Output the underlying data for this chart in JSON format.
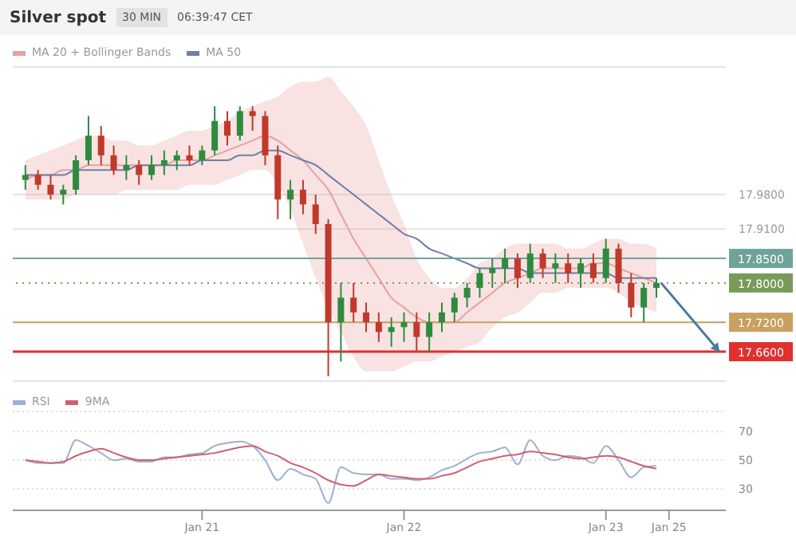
{
  "chart_data": [
    {
      "type": "candlestick",
      "title": "Silver spot",
      "subtitle": "30 MIN",
      "annotations": [
        "06:39:47 CET"
      ],
      "legend": "top left",
      "grid": "y",
      "tick_labels": "y",
      "categories": [
        null,
        null,
        null,
        null,
        null,
        null,
        null,
        null,
        null,
        null,
        null,
        null,
        null,
        null,
        null,
        null,
        null,
        null,
        null,
        null,
        null,
        null,
        null,
        null,
        null,
        null,
        null,
        null,
        null,
        null,
        null,
        null,
        null,
        null,
        null,
        null,
        null,
        null,
        null,
        null,
        null,
        null,
        null,
        null,
        null,
        null,
        null,
        null,
        null,
        null,
        null,
        null,
        null,
        null,
        null,
        null
      ],
      "ohlc": [
        [
          18.01,
          18.04,
          17.99,
          18.02
        ],
        [
          18.02,
          18.03,
          17.99,
          18.0
        ],
        [
          18.0,
          18.02,
          17.97,
          17.98
        ],
        [
          17.98,
          18.0,
          17.96,
          17.99
        ],
        [
          17.99,
          18.06,
          17.98,
          18.05
        ],
        [
          18.05,
          18.14,
          18.04,
          18.1
        ],
        [
          18.1,
          18.12,
          18.04,
          18.06
        ],
        [
          18.06,
          18.08,
          18.02,
          18.03
        ],
        [
          18.03,
          18.06,
          18.01,
          18.04
        ],
        [
          18.04,
          18.05,
          18.0,
          18.02
        ],
        [
          18.02,
          18.06,
          18.01,
          18.04
        ],
        [
          18.04,
          18.07,
          18.02,
          18.05
        ],
        [
          18.05,
          18.07,
          18.03,
          18.06
        ],
        [
          18.06,
          18.08,
          18.04,
          18.05
        ],
        [
          18.05,
          18.08,
          18.04,
          18.07
        ],
        [
          18.07,
          18.16,
          18.06,
          18.13
        ],
        [
          18.13,
          18.15,
          18.08,
          18.1
        ],
        [
          18.1,
          18.16,
          18.09,
          18.15
        ],
        [
          18.15,
          18.16,
          18.11,
          18.14
        ],
        [
          18.14,
          18.15,
          18.04,
          18.06
        ],
        [
          18.06,
          18.08,
          17.93,
          17.97
        ],
        [
          17.97,
          18.01,
          17.93,
          17.99
        ],
        [
          17.99,
          18.01,
          17.94,
          17.96
        ],
        [
          17.96,
          17.98,
          17.9,
          17.92
        ],
        [
          17.92,
          17.93,
          17.61,
          17.72
        ],
        [
          17.72,
          17.8,
          17.64,
          17.77
        ],
        [
          17.77,
          17.8,
          17.72,
          17.74
        ],
        [
          17.74,
          17.76,
          17.7,
          17.72
        ],
        [
          17.72,
          17.74,
          17.68,
          17.7
        ],
        [
          17.7,
          17.73,
          17.67,
          17.71
        ],
        [
          17.71,
          17.74,
          17.68,
          17.72
        ],
        [
          17.72,
          17.74,
          17.66,
          17.69
        ],
        [
          17.69,
          17.74,
          17.66,
          17.72
        ],
        [
          17.72,
          17.76,
          17.7,
          17.74
        ],
        [
          17.74,
          17.78,
          17.72,
          17.77
        ],
        [
          17.77,
          17.8,
          17.75,
          17.79
        ],
        [
          17.79,
          17.83,
          17.77,
          17.82
        ],
        [
          17.82,
          17.85,
          17.79,
          17.83
        ],
        [
          17.83,
          17.87,
          17.8,
          17.85
        ],
        [
          17.85,
          17.86,
          17.79,
          17.81
        ],
        [
          17.81,
          17.88,
          17.8,
          17.86
        ],
        [
          17.86,
          17.87,
          17.81,
          17.83
        ],
        [
          17.83,
          17.86,
          17.8,
          17.84
        ],
        [
          17.84,
          17.86,
          17.8,
          17.82
        ],
        [
          17.82,
          17.85,
          17.79,
          17.84
        ],
        [
          17.84,
          17.86,
          17.8,
          17.81
        ],
        [
          17.81,
          17.89,
          17.8,
          17.87
        ],
        [
          17.87,
          17.88,
          17.78,
          17.8
        ],
        [
          17.8,
          17.82,
          17.73,
          17.75
        ],
        [
          17.75,
          17.8,
          17.72,
          17.79
        ],
        [
          17.79,
          17.81,
          17.77,
          17.8
        ],
        null,
        null,
        null,
        null,
        null
      ],
      "series": [
        {
          "name": "MA 20 + Bollinger Bands",
          "type": "line",
          "color": "#e8a0a0",
          "values": [
            18.01,
            18.02,
            18.02,
            18.03,
            18.03,
            18.04,
            18.04,
            18.04,
            18.04,
            18.04,
            18.04,
            18.04,
            18.05,
            18.05,
            18.05,
            18.06,
            18.07,
            18.08,
            18.09,
            18.1,
            18.09,
            18.07,
            18.05,
            18.02,
            17.99,
            17.94,
            17.89,
            17.85,
            17.81,
            17.77,
            17.75,
            17.73,
            17.72,
            17.72,
            17.72,
            17.74,
            17.76,
            17.78,
            17.8,
            17.81,
            17.82,
            17.83,
            17.83,
            17.83,
            17.83,
            17.84,
            17.84,
            17.83,
            17.82,
            17.81,
            17.8,
            null,
            null,
            null,
            null,
            null
          ],
          "upper": [
            18.05,
            18.06,
            18.07,
            18.08,
            18.09,
            18.1,
            18.1,
            18.09,
            18.09,
            18.08,
            18.08,
            18.09,
            18.1,
            18.11,
            18.11,
            18.12,
            18.13,
            18.15,
            18.16,
            18.17,
            18.18,
            18.2,
            18.21,
            18.21,
            18.22,
            18.19,
            18.16,
            18.12,
            18.05,
            17.98,
            17.92,
            17.85,
            17.81,
            17.79,
            17.79,
            17.81,
            17.84,
            17.85,
            17.87,
            17.88,
            17.88,
            17.88,
            17.88,
            17.87,
            17.87,
            17.88,
            17.89,
            17.89,
            17.88,
            17.88,
            17.87,
            null,
            null,
            null,
            null,
            null
          ],
          "lower": [
            17.97,
            17.97,
            17.97,
            17.97,
            17.98,
            17.98,
            17.98,
            17.98,
            17.99,
            17.99,
            17.99,
            17.99,
            17.99,
            18.0,
            18.0,
            18.0,
            18.01,
            18.02,
            18.03,
            18.03,
            18.0,
            17.95,
            17.88,
            17.81,
            17.75,
            17.7,
            17.65,
            17.62,
            17.62,
            17.62,
            17.63,
            17.64,
            17.64,
            17.65,
            17.66,
            17.67,
            17.68,
            17.71,
            17.73,
            17.74,
            17.76,
            17.78,
            17.78,
            17.79,
            17.79,
            17.79,
            17.79,
            17.78,
            17.76,
            17.75,
            17.74,
            null,
            null,
            null,
            null,
            null
          ]
        },
        {
          "name": "MA 50",
          "type": "line",
          "color": "#6f7fa8",
          "values": [
            18.02,
            18.02,
            18.02,
            18.02,
            18.03,
            18.03,
            18.03,
            18.03,
            18.03,
            18.04,
            18.04,
            18.04,
            18.04,
            18.04,
            18.05,
            18.05,
            18.05,
            18.06,
            18.06,
            18.07,
            18.07,
            18.06,
            18.05,
            18.04,
            18.02,
            18.0,
            17.98,
            17.96,
            17.94,
            17.92,
            17.9,
            17.89,
            17.87,
            17.86,
            17.85,
            17.84,
            17.83,
            17.83,
            17.83,
            17.83,
            17.82,
            17.82,
            17.82,
            17.82,
            17.82,
            17.82,
            17.82,
            17.81,
            17.81,
            17.81,
            17.81,
            null,
            null,
            null,
            null,
            null
          ]
        }
      ],
      "ylim": [
        17.6,
        18.24
      ],
      "yticks": [
        {
          "value": 17.98,
          "label": "17.9800"
        },
        {
          "value": 17.91,
          "label": "17.9100"
        }
      ],
      "ref_lines": [
        {
          "axis": "y",
          "value": 17.85,
          "label": "17.8500",
          "color": "#6fa39a"
        },
        {
          "axis": "y",
          "value": 17.8,
          "label": "17.8000",
          "color": "#7a9a5a",
          "line_style": "dotted"
        },
        {
          "axis": "y",
          "value": 17.72,
          "label": "17.7200",
          "color": "#c8a060"
        },
        {
          "axis": "y",
          "value": 17.66,
          "label": "17.6600",
          "color": "#e03030"
        }
      ]
    },
    {
      "type": "line",
      "legend": "top left",
      "grid": "y",
      "categories": [
        null,
        null,
        null,
        null,
        null,
        null,
        null,
        null,
        null,
        null,
        null,
        null,
        null,
        null,
        "Jan 21",
        null,
        null,
        null,
        null,
        null,
        null,
        null,
        null,
        null,
        null,
        null,
        null,
        null,
        null,
        null,
        "Jan 22",
        null,
        null,
        null,
        null,
        null,
        null,
        null,
        null,
        null,
        null,
        null,
        null,
        null,
        null,
        null,
        "Jan 23",
        null,
        null,
        null,
        null,
        "Jan 25",
        null,
        null,
        null,
        null
      ],
      "series": [
        {
          "name": "RSI",
          "color": "#9fb0d0",
          "values": [
            50,
            48,
            48,
            48,
            64,
            60,
            55,
            50,
            51,
            49,
            49,
            52,
            52,
            54,
            55,
            60,
            62,
            63,
            60,
            50,
            36,
            44,
            40,
            37,
            20,
            45,
            41,
            40,
            40,
            37,
            37,
            36,
            38,
            43,
            46,
            51,
            55,
            56,
            59,
            47,
            64,
            53,
            50,
            53,
            52,
            48,
            60,
            50,
            38,
            45,
            46,
            null,
            null,
            null,
            null,
            null
          ]
        },
        {
          "name": "9MA",
          "color": "#d06070",
          "values": [
            50,
            49,
            48,
            49,
            53,
            56,
            58,
            55,
            52,
            50,
            50,
            51,
            52,
            53,
            54,
            55,
            57,
            59,
            60,
            56,
            53,
            48,
            45,
            41,
            36,
            33,
            32,
            36,
            40,
            39,
            38,
            37,
            37,
            39,
            41,
            45,
            49,
            51,
            53,
            54,
            56,
            55,
            54,
            52,
            51,
            52,
            53,
            52,
            49,
            46,
            44,
            null,
            null,
            null,
            null,
            null
          ]
        }
      ],
      "ylim": [
        15,
        84
      ],
      "yticks": [
        30,
        50,
        70
      ]
    }
  ]
}
